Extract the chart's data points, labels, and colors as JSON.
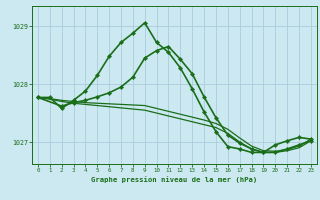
{
  "title": "Graphe pression niveau de la mer (hPa)",
  "bg_color": "#cce8f0",
  "grid_color": "#aaccdd",
  "line_color": "#1a6e1a",
  "xlim": [
    -0.5,
    23.5
  ],
  "ylim": [
    1026.62,
    1029.35
  ],
  "yticks": [
    1027,
    1028,
    1029
  ],
  "xticks": [
    0,
    1,
    2,
    3,
    4,
    5,
    6,
    7,
    8,
    9,
    10,
    11,
    12,
    13,
    14,
    15,
    16,
    17,
    18,
    19,
    20,
    21,
    22,
    23
  ],
  "series": [
    {
      "x": [
        0,
        1,
        2,
        3,
        4,
        5,
        6,
        7,
        8,
        9,
        10,
        11,
        12,
        13,
        14,
        15,
        16,
        17,
        18,
        19,
        20,
        21,
        22,
        23
      ],
      "y": [
        1027.77,
        1027.77,
        1027.58,
        1027.72,
        1027.88,
        1028.15,
        1028.48,
        1028.72,
        1028.88,
        1029.06,
        1028.72,
        1028.55,
        1028.28,
        1027.92,
        1027.52,
        1027.18,
        1026.92,
        1026.88,
        1026.82,
        1026.82,
        1026.95,
        1027.02,
        1027.08,
        1027.05
      ],
      "marker": true,
      "lw": 1.2
    },
    {
      "x": [
        0,
        2,
        3,
        4,
        5,
        6,
        7,
        8,
        9,
        10,
        11,
        12,
        13,
        14,
        15,
        16,
        17,
        18,
        19,
        20,
        21,
        22,
        23
      ],
      "y": [
        1027.77,
        1027.62,
        1027.68,
        1027.72,
        1027.78,
        1027.85,
        1027.95,
        1028.12,
        1028.45,
        1028.58,
        1028.65,
        1028.43,
        1028.18,
        1027.78,
        1027.42,
        1027.12,
        1026.98,
        1026.88,
        1026.82,
        1026.82,
        1026.88,
        1026.95,
        1027.02
      ],
      "marker": true,
      "lw": 1.2
    },
    {
      "x": [
        0,
        1,
        2,
        3,
        4,
        5,
        6,
        7,
        8,
        9,
        10,
        11,
        12,
        13,
        14,
        15,
        16,
        17,
        18,
        19,
        20,
        21,
        22,
        23
      ],
      "y": [
        1027.77,
        1027.74,
        1027.7,
        1027.67,
        1027.65,
        1027.63,
        1027.61,
        1027.59,
        1027.57,
        1027.55,
        1027.5,
        1027.45,
        1027.4,
        1027.35,
        1027.3,
        1027.25,
        1027.15,
        1027.0,
        1026.88,
        1026.82,
        1026.82,
        1026.85,
        1026.9,
        1027.02
      ],
      "marker": false,
      "lw": 0.9
    },
    {
      "x": [
        0,
        1,
        2,
        3,
        4,
        5,
        6,
        7,
        8,
        9,
        10,
        11,
        12,
        13,
        14,
        15,
        16,
        17,
        18,
        19,
        20,
        21,
        22,
        23
      ],
      "y": [
        1027.77,
        1027.75,
        1027.72,
        1027.7,
        1027.68,
        1027.67,
        1027.66,
        1027.65,
        1027.64,
        1027.63,
        1027.58,
        1027.53,
        1027.48,
        1027.43,
        1027.38,
        1027.32,
        1027.22,
        1027.07,
        1026.93,
        1026.85,
        1026.84,
        1026.87,
        1026.93,
        1027.05
      ],
      "marker": false,
      "lw": 0.9
    }
  ]
}
